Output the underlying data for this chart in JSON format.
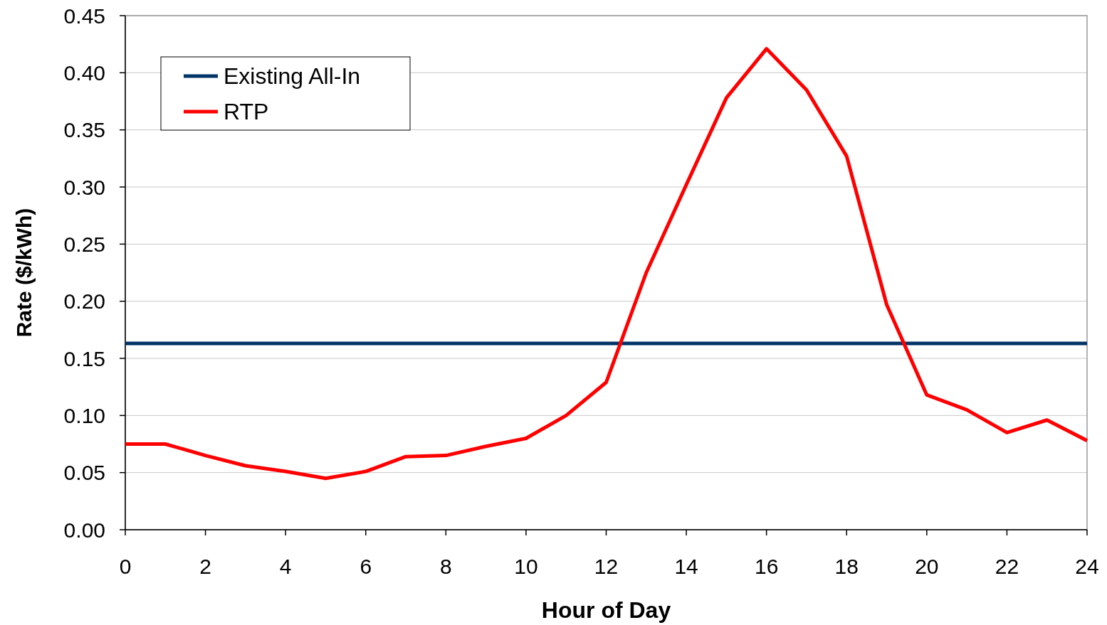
{
  "chart_data": {
    "type": "line",
    "xlabel": "Hour of Day",
    "ylabel": "Rate ($/kWh)",
    "xlim": [
      0,
      24
    ],
    "xticks": [
      0,
      2,
      4,
      6,
      8,
      10,
      12,
      14,
      16,
      18,
      20,
      22,
      24
    ],
    "ylim": [
      0,
      0.45
    ],
    "yticks": [
      {
        "value": 0,
        "label": "0.00"
      },
      {
        "value": 0.05,
        "label": "0.05"
      },
      {
        "value": 0.1,
        "label": "0.10"
      },
      {
        "value": 0.15,
        "label": "0.15"
      },
      {
        "value": 0.2,
        "label": "0.20"
      },
      {
        "value": 0.25,
        "label": "0.25"
      },
      {
        "value": 0.3,
        "label": "0.30"
      },
      {
        "value": 0.35,
        "label": "0.35"
      },
      {
        "value": 0.4,
        "label": "0.40"
      },
      {
        "value": 0.45,
        "label": "0.45"
      }
    ],
    "grid": "y",
    "legend": "top left",
    "marker": "none",
    "line_style": "solid",
    "series": [
      {
        "name": "Existing All-In",
        "color": "#003366",
        "x": [
          0,
          24
        ],
        "values": [
          0.163,
          0.163
        ]
      },
      {
        "name": "RTP",
        "color": "#ff0000",
        "x": [
          0,
          1,
          2,
          3,
          4,
          5,
          6,
          7,
          8,
          9,
          10,
          11,
          12,
          13,
          14,
          15,
          16,
          17,
          18,
          19,
          20,
          21,
          22,
          23,
          24
        ],
        "values": [
          0.075,
          0.075,
          0.065,
          0.056,
          0.051,
          0.045,
          0.051,
          0.064,
          0.065,
          0.073,
          0.08,
          0.1,
          0.129,
          0.225,
          0.302,
          0.378,
          0.421,
          0.385,
          0.327,
          0.197,
          0.118,
          0.105,
          0.085,
          0.096,
          0.078
        ]
      }
    ]
  }
}
